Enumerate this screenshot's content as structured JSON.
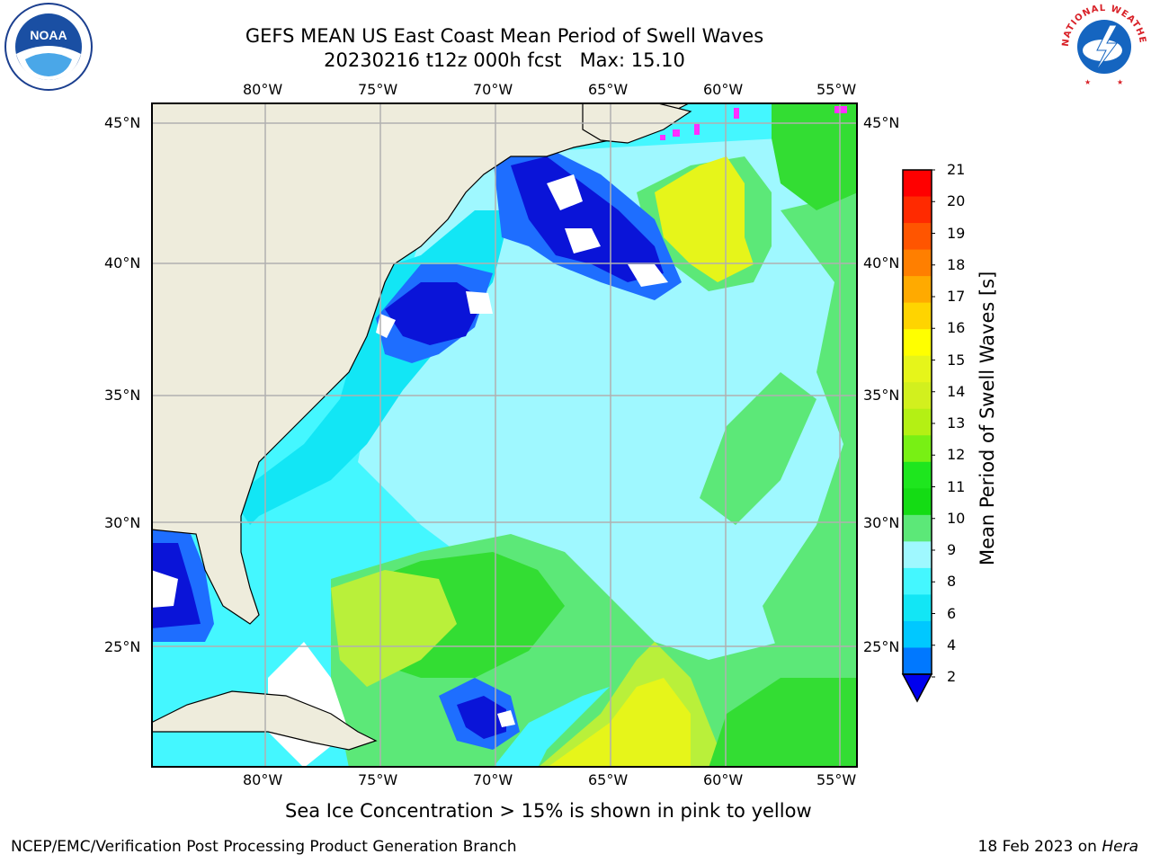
{
  "title": {
    "line1": "GEFS MEAN US East Coast Mean Period of Swell Waves",
    "line2": "20230216 t12z 000h fcst   Max: 15.10"
  },
  "logos": {
    "left": "NOAA",
    "right": "NATIONAL WEATHER SERVICE"
  },
  "map": {
    "lon_labels": [
      "80°W",
      "75°W",
      "70°W",
      "65°W",
      "60°W",
      "55°W"
    ],
    "lat_labels": [
      "45°N",
      "40°N",
      "35°N",
      "30°N",
      "25°N"
    ],
    "colors": {
      "land": "#eeecdc",
      "missing": "#ffffff",
      "blue_dark": "#0a14d8",
      "blue": "#1e6eff",
      "cyan_deep": "#12e6f5",
      "cyan": "#44f7ff",
      "cyan_light": "#9ff8ff",
      "green_light": "#5ce878",
      "green": "#33dd33",
      "yellowgreen": "#b9f03a",
      "yellow": "#e6f51a",
      "ice_pink": "#ff2fff",
      "grid": "#b0b0b0"
    }
  },
  "colorbar": {
    "label": "Mean Period of Swell Waves [s]",
    "ticks": [
      "21",
      "20",
      "19",
      "18",
      "17",
      "16",
      "15",
      "14",
      "13",
      "12",
      "11",
      "10",
      "9",
      "8",
      "6",
      "4",
      "2"
    ],
    "colors_top_to_bottom": [
      "#ff0000",
      "#ff2a00",
      "#ff5500",
      "#ff7f00",
      "#ffaa00",
      "#ffd400",
      "#ffff00",
      "#e6f51a",
      "#d2f01e",
      "#b4f014",
      "#78f014",
      "#1ee61e",
      "#14dc14",
      "#5ce878",
      "#9ff8ff",
      "#44f7ff",
      "#12e6f5",
      "#00c8ff",
      "#0078ff"
    ],
    "extend_color": "#0000ee"
  },
  "caption": "Sea Ice Concentration > 15% is shown in pink to yellow",
  "footer": {
    "left": "NCEP/EMC/Verification Post Processing Product Generation Branch",
    "right_date": "18 Feb 2023 on ",
    "right_machine": "Hera"
  }
}
